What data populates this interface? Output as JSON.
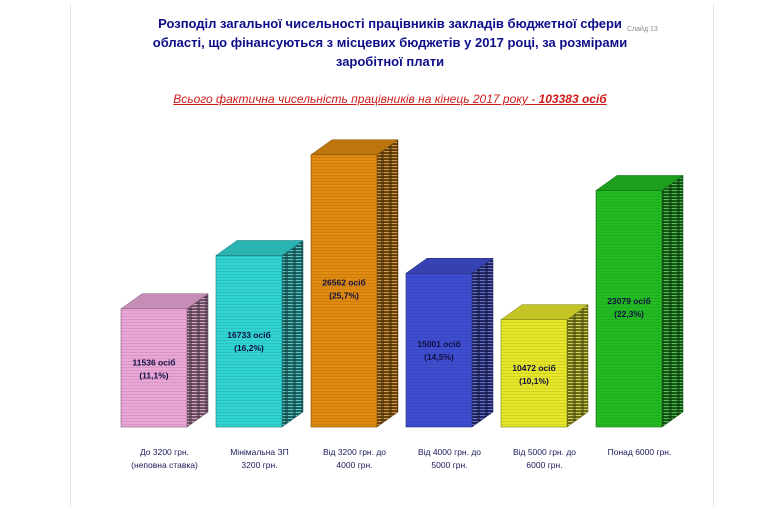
{
  "title": {
    "line1": "Розподіл загальної чисельності працівників закладів бюджетної сфери",
    "line2": "області, що фінансуються з місцевих бюджетів у 2017 році, за розмірами",
    "line3": "заробітної плати"
  },
  "slide_number": "Слайд 13",
  "subtitle": {
    "text": "Всього фактична чисельність працівників на кінець 2017 року - ",
    "total": "103383 осіб"
  },
  "chart_data": {
    "type": "bar",
    "categories": [
      [
        "До 3200 грн.",
        "(неповна ставка)"
      ],
      [
        "Мінімальна ЗП",
        "3200 грн."
      ],
      [
        "Від 3200 грн. до",
        "4000 грн."
      ],
      [
        "Від 4000 грн. до",
        "5000 грн."
      ],
      [
        "Від 5000 грн. до",
        "6000 грн."
      ],
      [
        "Понад 6000 грн."
      ]
    ],
    "values": [
      11536,
      16733,
      26562,
      15001,
      10472,
      23079
    ],
    "percent": [
      11.1,
      16.2,
      25.7,
      14.5,
      10.1,
      22.3
    ],
    "data_labels": [
      [
        "11536 осіб",
        "(11,1%)"
      ],
      [
        "16733 осіб",
        "(16,2%)"
      ],
      [
        "26562 осіб",
        "(25,7%)"
      ],
      [
        "15001 осіб",
        "(14,5%)"
      ],
      [
        "10472 осіб",
        "(10,1%)"
      ],
      [
        "23079 осіб",
        "(22,3%)"
      ]
    ],
    "colors": [
      "#e9a6d6",
      "#31d4d4",
      "#e08a10",
      "#3f4ed0",
      "#e7e72a",
      "#22bb22"
    ],
    "ylim": [
      0,
      28000
    ],
    "grid": false,
    "legend": "none"
  }
}
